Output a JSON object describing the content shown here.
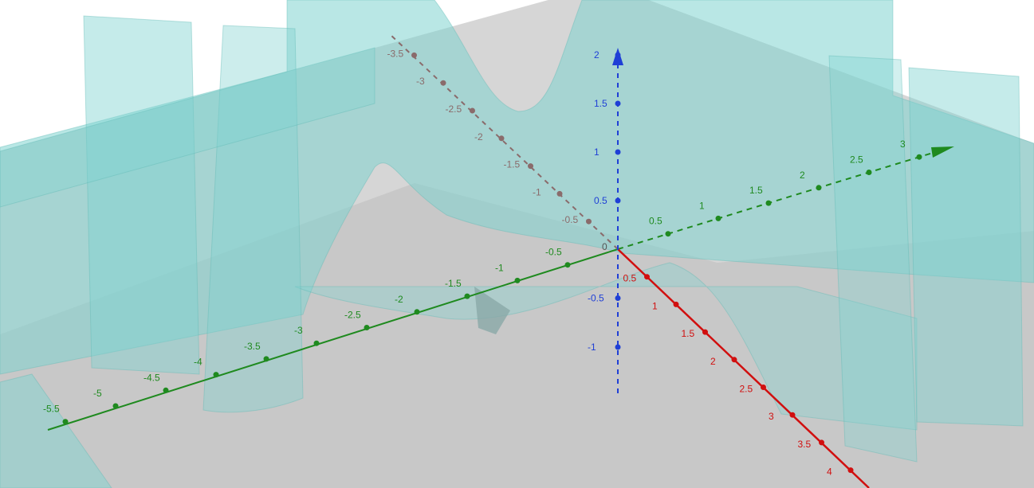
{
  "app": {
    "view": "3D Graphics"
  },
  "colors": {
    "x_axis": "#d10f0f",
    "y_axis": "#1f8a1f",
    "z_axis": "#1f3fd6",
    "neg_x_axis": "#8a6b6b",
    "surface": "#7fd3d0",
    "plane": "#c8c8c8"
  },
  "axes": {
    "x_positive": [
      "0.5",
      "1",
      "1.5",
      "2",
      "2.5",
      "3",
      "3.5",
      "4"
    ],
    "x_negative": [
      "-0.5",
      "-1",
      "-1.5",
      "-2",
      "-2.5",
      "-3",
      "-3.5"
    ],
    "y_positive": [
      "0.5",
      "1",
      "1.5",
      "2",
      "2.5",
      "3"
    ],
    "y_negative": [
      "-0.5",
      "-1",
      "-1.5",
      "-2",
      "-2.5",
      "-3",
      "-3.5",
      "-4",
      "-4.5",
      "-5",
      "-5.5"
    ],
    "z_positive": [
      "0.5",
      "1",
      "1.5",
      "2"
    ],
    "z_negative": [
      "-0.5",
      "-1"
    ],
    "origin": "0"
  }
}
